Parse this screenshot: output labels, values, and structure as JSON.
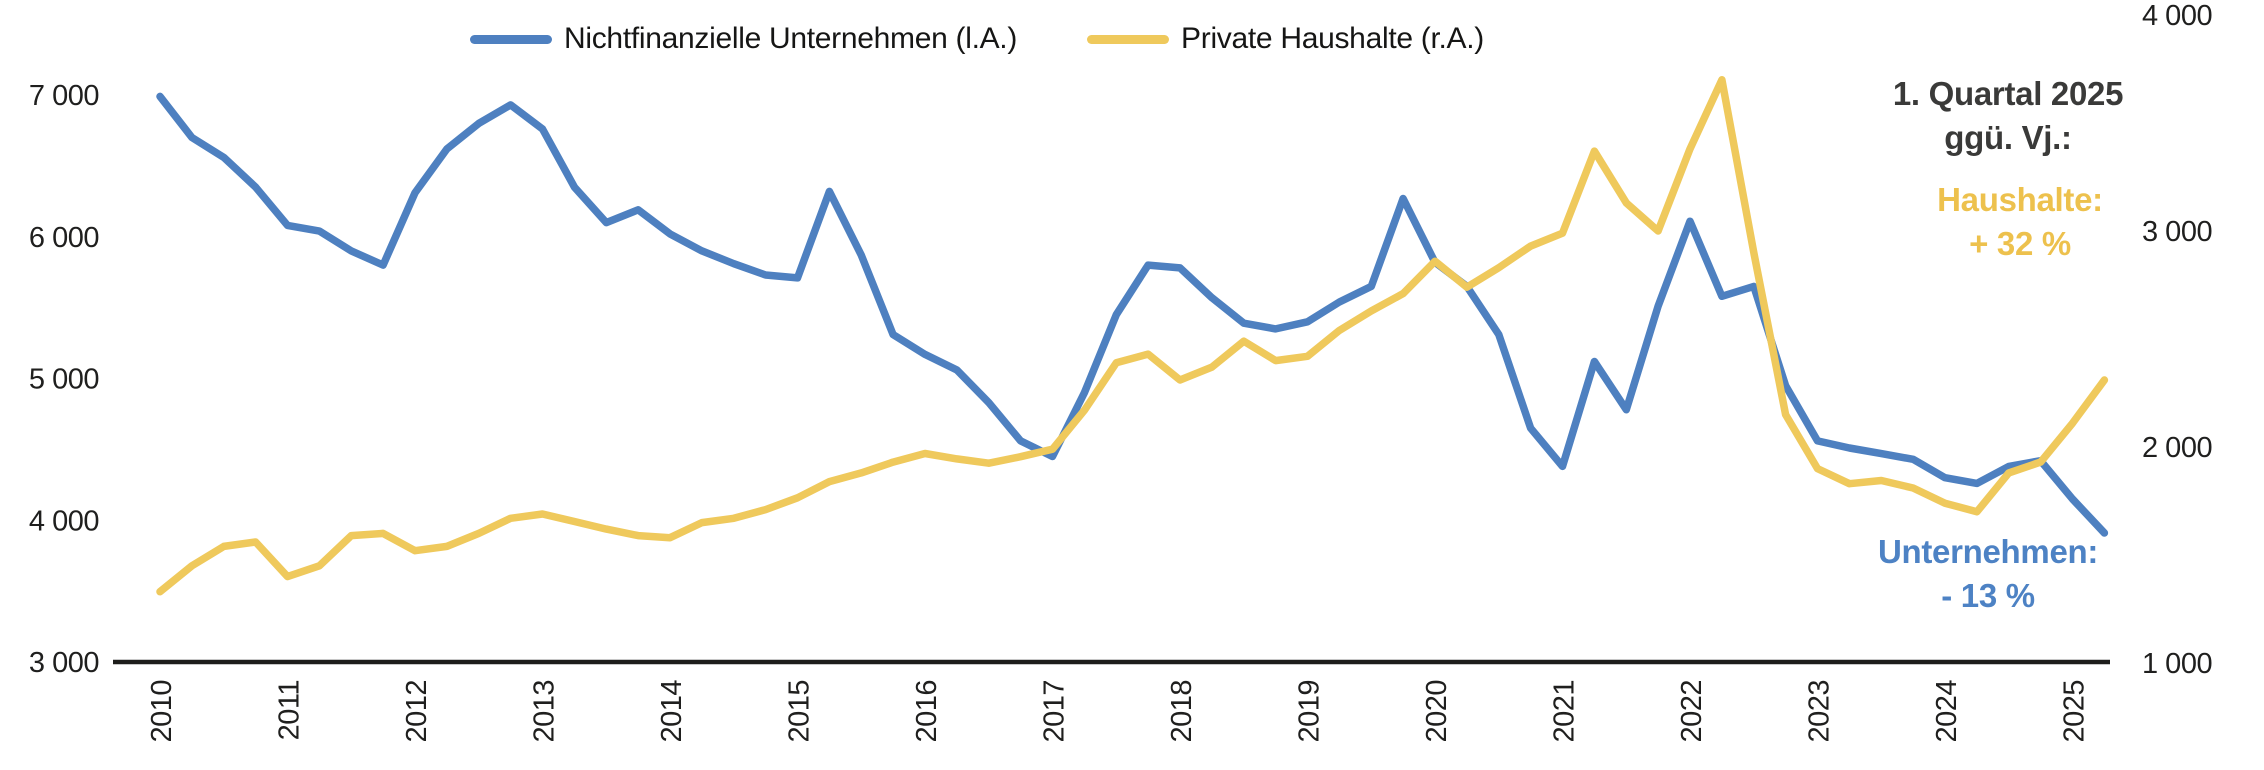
{
  "legend": {
    "items": [
      {
        "label": "Nichtfinanzielle Unternehmen (l.A.)",
        "color": "#4E80C0"
      },
      {
        "label": "Private Haushalte (r.A.)",
        "color": "#EFC95C"
      }
    ]
  },
  "annotations": {
    "header_line1": "1. Quartal 2025",
    "header_line2": "ggü. Vj.:",
    "haushalte_label": "Haushalte:",
    "haushalte_value": "+ 32 %",
    "haushalte_color": "#EDC14D",
    "unternehmen_label": "Unternehmen:",
    "unternehmen_value": "- 13 %",
    "unternehmen_color": "#4D82C4"
  },
  "chart_data": {
    "type": "line",
    "title": "",
    "x_start": 2010,
    "x_step": 0.25,
    "x_tick_labels": [
      "2010",
      "2011",
      "2012",
      "2013",
      "2014",
      "2015",
      "2016",
      "2017",
      "2018",
      "2019",
      "2020",
      "2021",
      "2022",
      "2023",
      "2024",
      "2025"
    ],
    "left_axis": {
      "range": [
        3000,
        7000
      ],
      "ticks": [
        {
          "value": 3000,
          "label": "3 000"
        },
        {
          "value": 4000,
          "label": "4 000"
        },
        {
          "value": 5000,
          "label": "5 000"
        },
        {
          "value": 6000,
          "label": "6 000"
        },
        {
          "value": 7000,
          "label": "7 000"
        }
      ]
    },
    "right_axis": {
      "range": [
        1000,
        4000
      ],
      "ticks": [
        {
          "value": 1000,
          "label": "1 000"
        },
        {
          "value": 2000,
          "label": "2 000"
        },
        {
          "value": 3000,
          "label": "3 000"
        },
        {
          "value": 4000,
          "label": "4 000"
        }
      ]
    },
    "axis_color": "#1d1d1b",
    "series": [
      {
        "name": "Nichtfinanzielle Unternehmen (l.A.)",
        "axis": "left",
        "color": "#4E80C0",
        "values": [
          6990,
          6700,
          6560,
          6350,
          6080,
          6040,
          5900,
          5800,
          6310,
          6620,
          6800,
          6930,
          6760,
          6350,
          6100,
          6190,
          6020,
          5900,
          5810,
          5730,
          5710,
          6320,
          5870,
          5310,
          5170,
          5060,
          4830,
          4560,
          4450,
          4900,
          5450,
          5800,
          5780,
          5570,
          5390,
          5350,
          5400,
          5540,
          5650,
          6270,
          5820,
          5650,
          5310,
          4650,
          4380,
          5120,
          4780,
          5510,
          6110,
          5580,
          5650,
          4950,
          4560,
          4510,
          4470,
          4430,
          4300,
          4260,
          4380,
          4420,
          4150,
          3910
        ]
      },
      {
        "name": "Private Haushalte (r.A.)",
        "axis": "right",
        "color": "#EFC95C",
        "values": [
          1330,
          1450,
          1540,
          1560,
          1400,
          1450,
          1590,
          1600,
          1520,
          1540,
          1600,
          1670,
          1690,
          1655,
          1620,
          1590,
          1580,
          1650,
          1670,
          1710,
          1765,
          1840,
          1880,
          1930,
          1970,
          1945,
          1925,
          1955,
          1990,
          2170,
          2390,
          2430,
          2310,
          2370,
          2490,
          2400,
          2420,
          2540,
          2630,
          2710,
          2860,
          2740,
          2830,
          2930,
          2990,
          3370,
          3130,
          3000,
          3380,
          3700,
          2900,
          2150,
          1900,
          1830,
          1845,
          1810,
          1740,
          1700,
          1880,
          1930,
          2110,
          2310
        ]
      }
    ]
  }
}
